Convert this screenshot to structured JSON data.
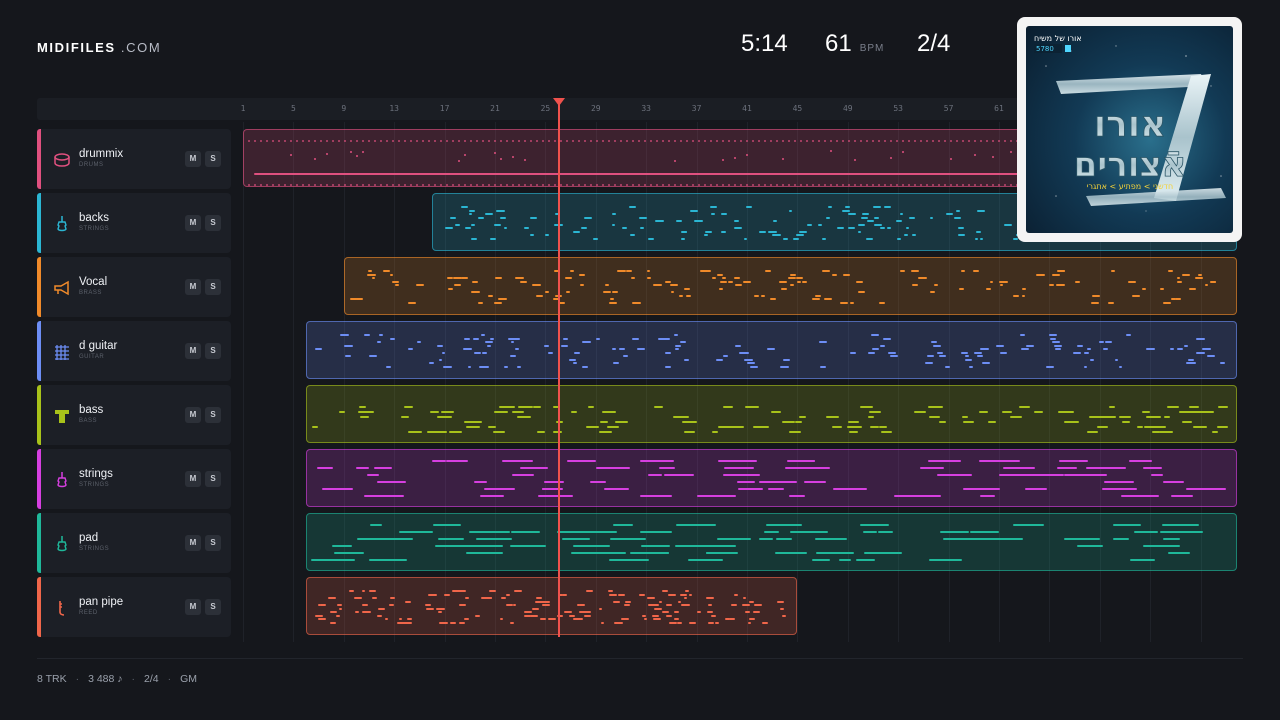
{
  "header": {
    "logo_bold": "MIDIFILES",
    "logo_light": ".COM",
    "time": "5:14",
    "tempo": "61",
    "tempo_unit": "BPM",
    "meter": "2/4"
  },
  "ruler": {
    "bars": [
      "1",
      "5",
      "9",
      "13",
      "17",
      "21",
      "25",
      "29",
      "33",
      "37",
      "41",
      "45",
      "49",
      "53",
      "57",
      "61"
    ]
  },
  "playhead": {
    "bar": 25
  },
  "tracks": [
    {
      "name": "drummix",
      "category": "DRUMS",
      "color": "#e0507f",
      "icon": "drum-icon"
    },
    {
      "name": "backs",
      "category": "STRINGS",
      "color": "#2bb6d3",
      "icon": "violin-icon"
    },
    {
      "name": "Vocal",
      "category": "BRASS",
      "color": "#f08a2a",
      "icon": "trumpet-icon"
    },
    {
      "name": "d guitar",
      "category": "GUITAR",
      "color": "#6d8ef5",
      "icon": "guitar-icon"
    },
    {
      "name": "bass",
      "category": "BASS",
      "color": "#a8c21a",
      "icon": "bass-icon"
    },
    {
      "name": "strings",
      "category": "STRINGS",
      "color": "#d63fe0",
      "icon": "violin-icon"
    },
    {
      "name": "pad",
      "category": "STRINGS",
      "color": "#1fb89a",
      "icon": "violin-icon"
    },
    {
      "name": "pan pipe",
      "category": "REED",
      "color": "#f0664a",
      "icon": "pipe-icon"
    }
  ],
  "buttons": {
    "mute": "M",
    "solo": "S"
  },
  "footer": {
    "tracks": "8 TRK",
    "notes": "3 488 ♪",
    "meter": "2/4",
    "standard": "GM"
  },
  "cover": {
    "top_text": "אורו של משיח",
    "badge": "5780",
    "title_line1": "אורו",
    "title_line2": "אֿצורים",
    "subtitle": "חדשני > מפתיע > אתגרי"
  }
}
